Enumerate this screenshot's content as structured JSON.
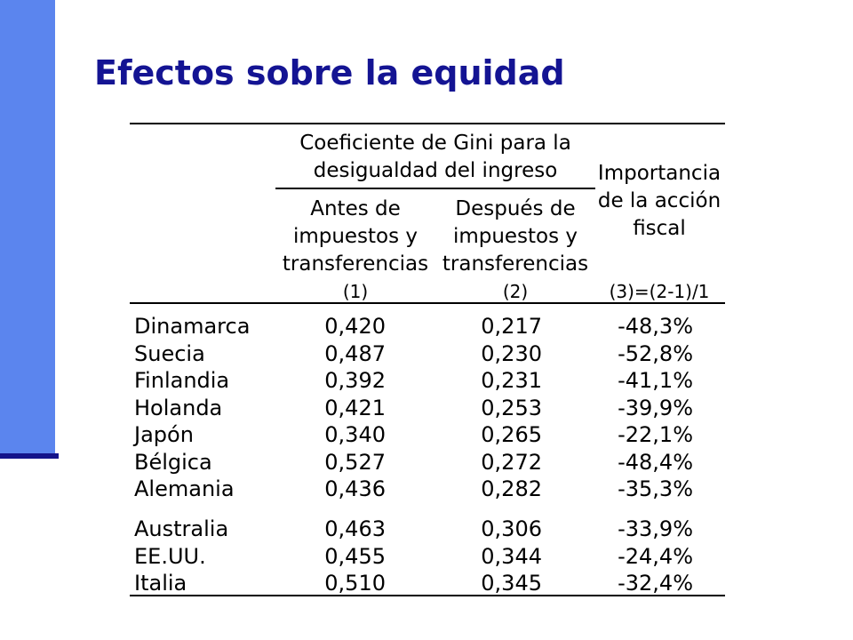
{
  "title": "Efectos sobre la equidad",
  "table": {
    "header_group": "Coeficiente de Gini para la desigualdad del ingreso",
    "header_group_lines": [
      "Coeficiente de Gini para la",
      "desigualdad del ingreso"
    ],
    "col1_lines": [
      "Antes de",
      "impuestos y",
      "transferencias"
    ],
    "col2_lines": [
      "Después de",
      "impuestos y",
      "transferencias"
    ],
    "col3_lines": [
      "Importancia",
      "de la acción",
      "fiscal"
    ],
    "col1_index": "(1)",
    "col2_index": "(2)",
    "col3_index": "(3)=(2-1)/1",
    "rows": [
      {
        "country": "Dinamarca",
        "before": "0,420",
        "after": "0,217",
        "change": "-48,3%"
      },
      {
        "country": "Suecia",
        "before": "0,487",
        "after": "0,230",
        "change": "-52,8%"
      },
      {
        "country": "Finlandia",
        "before": "0,392",
        "after": "0,231",
        "change": "-41,1%"
      },
      {
        "country": "Holanda",
        "before": "0,421",
        "after": "0,253",
        "change": "-39,9%"
      },
      {
        "country": "Japón",
        "before": "0,340",
        "after": "0,265",
        "change": "-22,1%"
      },
      {
        "country": "Bélgica",
        "before": "0,527",
        "after": "0,272",
        "change": "-48,4%"
      },
      {
        "country": "Alemania",
        "before": "0,436",
        "after": "0,282",
        "change": "-35,3%"
      },
      {
        "country": "Australia",
        "before": "0,463",
        "after": "0,306",
        "change": "-33,9%"
      },
      {
        "country": "EE.UU.",
        "before": "0,455",
        "after": "0,344",
        "change": "-24,4%"
      },
      {
        "country": "Italia",
        "before": "0,510",
        "after": "0,345",
        "change": "-32,4%"
      }
    ]
  }
}
